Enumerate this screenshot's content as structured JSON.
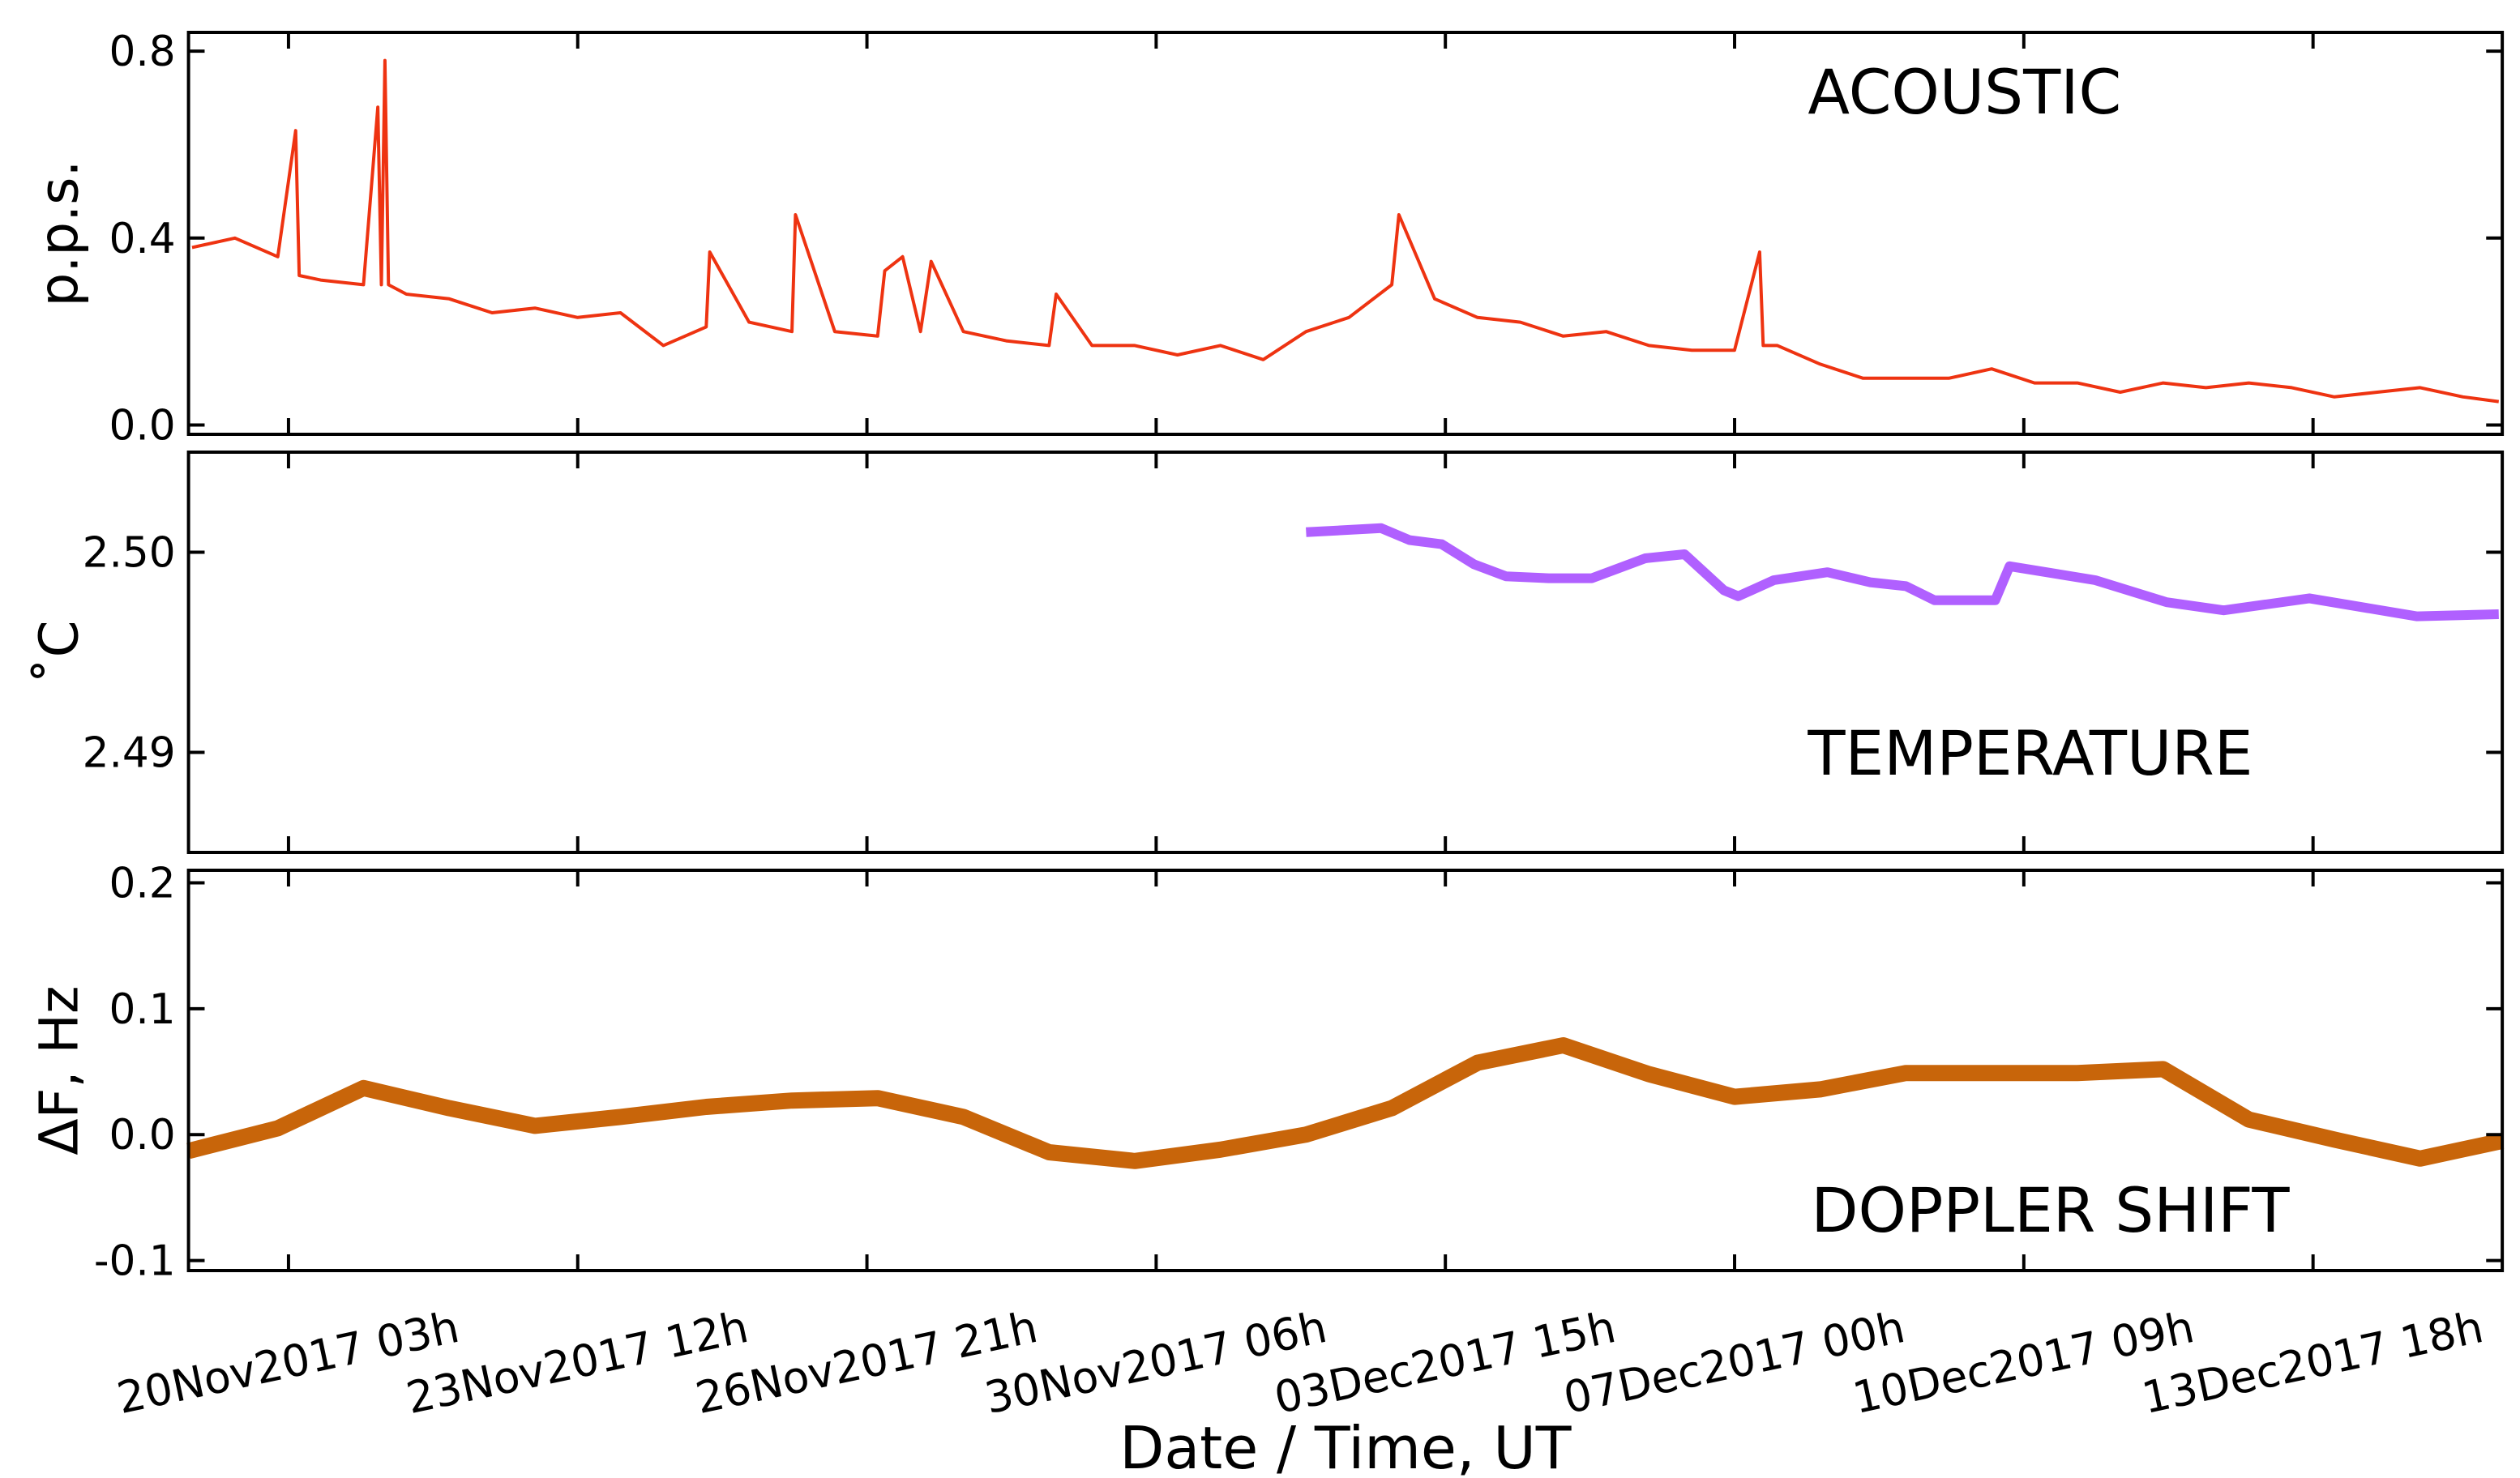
{
  "chart_data": [
    {
      "type": "line",
      "ylabel": "p.p.s.",
      "annotation": "ACOUSTIC",
      "color": "#ee3311",
      "ylim": [
        -0.02,
        0.84
      ],
      "yticks": [
        {
          "value": 0,
          "label": "0.0"
        },
        0.4,
        0.8
      ],
      "x": [
        "2017-11-19T00:00",
        "2017-11-19T12:00",
        "2017-11-20T00:00",
        "2017-11-20T05:00",
        "2017-11-20T06:00",
        "2017-11-20T12:00",
        "2017-11-21T00:00",
        "2017-11-21T04:00",
        "2017-11-21T05:00",
        "2017-11-21T06:00",
        "2017-11-21T07:00",
        "2017-11-21T12:00",
        "2017-11-22T00:00",
        "2017-11-22T12:00",
        "2017-11-23T00:00",
        "2017-11-23T12:00",
        "2017-11-24T00:00",
        "2017-11-24T12:00",
        "2017-11-25T00:00",
        "2017-11-25T01:00",
        "2017-11-25T12:00",
        "2017-11-26T00:00",
        "2017-11-26T01:00",
        "2017-11-26T12:00",
        "2017-11-27T00:00",
        "2017-11-27T02:00",
        "2017-11-27T07:00",
        "2017-11-27T12:00",
        "2017-11-27T15:00",
        "2017-11-28T00:00",
        "2017-11-28T12:00",
        "2017-11-29T00:00",
        "2017-11-29T02:00",
        "2017-11-29T12:00",
        "2017-11-30T00:00",
        "2017-11-30T12:00",
        "2017-12-01T00:00",
        "2017-12-01T12:00",
        "2017-12-02T00:00",
        "2017-12-02T12:00",
        "2017-12-03T00:00",
        "2017-12-03T02:00",
        "2017-12-03T12:00",
        "2017-12-04T00:00",
        "2017-12-04T12:00",
        "2017-12-05T00:00",
        "2017-12-05T12:00",
        "2017-12-06T00:00",
        "2017-12-06T12:00",
        "2017-12-07T00:00",
        "2017-12-07T07:00",
        "2017-12-07T08:00",
        "2017-12-07T12:00",
        "2017-12-08T00:00",
        "2017-12-08T12:00",
        "2017-12-09T00:00",
        "2017-12-09T12:00",
        "2017-12-10T00:00",
        "2017-12-10T12:00",
        "2017-12-11T00:00",
        "2017-12-11T12:00",
        "2017-12-12T00:00",
        "2017-12-12T12:00",
        "2017-12-13T00:00",
        "2017-12-13T12:00",
        "2017-12-14T00:00",
        "2017-12-14T12:00",
        "2017-12-15T00:00",
        "2017-12-15T12:00",
        "2017-12-15T22:00"
      ],
      "values": [
        0.38,
        0.4,
        0.36,
        0.63,
        0.32,
        0.31,
        0.3,
        0.68,
        0.3,
        0.78,
        0.3,
        0.28,
        0.27,
        0.24,
        0.25,
        0.23,
        0.24,
        0.17,
        0.21,
        0.37,
        0.22,
        0.2,
        0.45,
        0.2,
        0.19,
        0.33,
        0.36,
        0.2,
        0.35,
        0.2,
        0.18,
        0.17,
        0.28,
        0.17,
        0.17,
        0.15,
        0.17,
        0.14,
        0.2,
        0.23,
        0.3,
        0.45,
        0.27,
        0.23,
        0.22,
        0.19,
        0.2,
        0.17,
        0.16,
        0.16,
        0.37,
        0.17,
        0.17,
        0.13,
        0.1,
        0.1,
        0.1,
        0.12,
        0.09,
        0.09,
        0.07,
        0.09,
        0.08,
        0.09,
        0.08,
        0.06,
        0.07,
        0.08,
        0.06,
        0.05
      ]
    },
    {
      "type": "line",
      "ylabel": "˚C",
      "annotation": "TEMPERATURE",
      "color": "#b060ff",
      "ylim": [
        2.485,
        2.505
      ],
      "yticks": [
        2.49,
        {
          "value": 2.5,
          "label": "2.50"
        }
      ],
      "x": [
        "2017-12-02T00:00",
        "2017-12-02T21:00",
        "2017-12-03T05:00",
        "2017-12-03T14:00",
        "2017-12-03T23:00",
        "2017-12-04T08:00",
        "2017-12-04T20:00",
        "2017-12-05T08:00",
        "2017-12-05T23:00",
        "2017-12-06T10:00",
        "2017-12-06T21:00",
        "2017-12-07T01:00",
        "2017-12-07T11:00",
        "2017-12-08T02:00",
        "2017-12-08T14:00",
        "2017-12-09T00:00",
        "2017-12-09T08:00",
        "2017-12-10T01:00",
        "2017-12-10T05:00",
        "2017-12-11T05:00",
        "2017-12-12T01:00",
        "2017-12-12T17:00",
        "2017-12-13T17:00",
        "2017-12-14T23:00",
        "2017-12-15T22:00"
      ],
      "values": [
        2.501,
        2.5012,
        2.5006,
        2.5004,
        2.4994,
        2.4988,
        2.4987,
        2.4987,
        2.4997,
        2.4999,
        2.4981,
        2.4978,
        2.4986,
        2.499,
        2.4985,
        2.4983,
        2.4976,
        2.4976,
        2.4993,
        2.4986,
        2.4975,
        2.4971,
        2.4977,
        2.4968,
        2.4969
      ]
    },
    {
      "type": "line",
      "ylabel": "ΔF,  Hz",
      "annotation": "DOPPLER SHIFT",
      "color": "#c8650a",
      "xlabel": "Date / Time,   UT",
      "ylim": [
        -0.108,
        0.21
      ],
      "yticks": [
        -0.1,
        {
          "value": 0,
          "label": "0.0"
        },
        0.1,
        0.2
      ],
      "xlim": [
        "2017-11-18T23:00",
        "2017-12-15T23:00"
      ],
      "xticks": [
        {
          "value": "2017-11-20T03:00",
          "label": "20Nov2017 03h"
        },
        {
          "value": "2017-11-23T12:00",
          "label": "23Nov2017 12h"
        },
        {
          "value": "2017-11-26T21:00",
          "label": "26Nov2017 21h"
        },
        {
          "value": "2017-11-30T06:00",
          "label": "30Nov2017 06h"
        },
        {
          "value": "2017-12-03T15:00",
          "label": "03Dec2017 15h"
        },
        {
          "value": "2017-12-07T00:00",
          "label": "07Dec2017 00h"
        },
        {
          "value": "2017-12-10T09:00",
          "label": "10Dec2017 09h"
        },
        {
          "value": "2017-12-13T18:00",
          "label": "13Dec2017 18h"
        }
      ],
      "x": [
        "2017-11-18T23:00",
        "2017-11-20T00:00",
        "2017-11-21T00:00",
        "2017-11-22T00:00",
        "2017-11-23T00:00",
        "2017-11-24T00:00",
        "2017-11-25T00:00",
        "2017-11-26T00:00",
        "2017-11-27T00:00",
        "2017-11-28T00:00",
        "2017-11-29T00:00",
        "2017-11-30T00:00",
        "2017-12-01T00:00",
        "2017-12-02T00:00",
        "2017-12-03T00:00",
        "2017-12-04T00:00",
        "2017-12-05T00:00",
        "2017-12-06T00:00",
        "2017-12-07T00:00",
        "2017-12-08T00:00",
        "2017-12-09T00:00",
        "2017-12-10T00:00",
        "2017-12-11T00:00",
        "2017-12-12T00:00",
        "2017-12-13T00:00",
        "2017-12-14T00:00",
        "2017-12-15T00:00",
        "2017-12-15T23:00"
      ],
      "values": [
        -0.013,
        0.005,
        0.037,
        0.021,
        0.007,
        0.014,
        0.022,
        0.027,
        0.029,
        0.014,
        -0.014,
        -0.021,
        -0.012,
        0.0,
        0.021,
        0.057,
        0.071,
        0.048,
        0.03,
        0.036,
        0.049,
        0.049,
        0.049,
        0.052,
        0.012,
        -0.004,
        -0.019,
        -0.005
      ]
    }
  ]
}
